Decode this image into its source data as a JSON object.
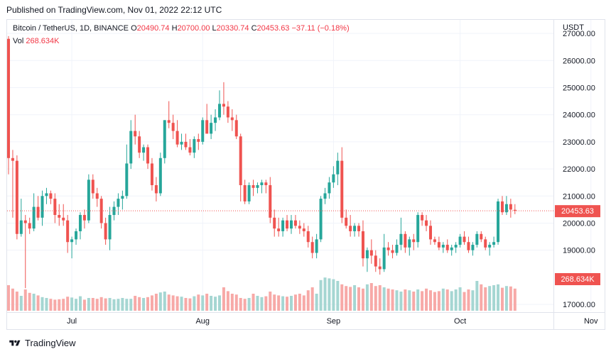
{
  "published": "Published on TradingView.com, Nov 01, 2022 22:12 UTC",
  "legend": {
    "symbol": "Bitcoin / TetherUS, 1D, BINANCE",
    "o_label": "O",
    "o": "20490.74",
    "h_label": "H",
    "h": "20700.00",
    "l_label": "L",
    "l": "20330.74",
    "c_label": "C",
    "c": "20453.63",
    "change": "−37.11 (−0.18%)"
  },
  "vol_legend": {
    "label": "Vol",
    "value": "268.634K"
  },
  "footer": {
    "brand": "TradingView"
  },
  "colors": {
    "up": "#26a69a",
    "down": "#ef5350",
    "up_vol": "#a5d6d2",
    "down_vol": "#f7a9a7",
    "grid": "#f0f3fa",
    "text": "#131722"
  },
  "chart_data": {
    "type": "candlestick",
    "currency": "USDT",
    "ylim": [
      16400,
      27500
    ],
    "y_ticks": [
      "27000.00",
      "26000.00",
      "25000.00",
      "24000.00",
      "23000.00",
      "22000.00",
      "21000.00",
      "20000.00",
      "19000.00",
      "17000.00"
    ],
    "x_ticks": [
      {
        "label": "Jul",
        "index": 15
      },
      {
        "label": "Aug",
        "index": 46
      },
      {
        "label": "Sep",
        "index": 77
      },
      {
        "label": "Oct",
        "index": 107
      },
      {
        "label": "Nov",
        "index": 138
      }
    ],
    "last_price": "20453.63",
    "last_volume": "268.634K",
    "candles": [
      [
        26800,
        26900,
        21800,
        22400
      ],
      [
        22400,
        22700,
        20200,
        22300
      ],
      [
        22300,
        22500,
        19400,
        19600
      ],
      [
        19600,
        20900,
        19500,
        20100
      ],
      [
        20100,
        20300,
        17600,
        20000
      ],
      [
        20000,
        20200,
        19600,
        19800
      ],
      [
        19800,
        21100,
        19700,
        20600
      ],
      [
        20600,
        21000,
        20100,
        20200
      ],
      [
        20200,
        21200,
        19900,
        21000
      ],
      [
        21000,
        21300,
        20700,
        21100
      ],
      [
        21100,
        21200,
        20700,
        20900
      ],
      [
        20900,
        21100,
        20000,
        20300
      ],
      [
        20300,
        20700,
        19900,
        20200
      ],
      [
        20200,
        20700,
        19900,
        20100
      ],
      [
        20100,
        20300,
        18900,
        19300
      ],
      [
        19300,
        19500,
        18700,
        19400
      ],
      [
        19400,
        19800,
        19200,
        19700
      ],
      [
        19700,
        20400,
        19400,
        20300
      ],
      [
        20300,
        20500,
        19800,
        20100
      ],
      [
        20100,
        21800,
        20000,
        21600
      ],
      [
        21600,
        21800,
        20900,
        21100
      ],
      [
        21100,
        21300,
        20600,
        20900
      ],
      [
        20900,
        21000,
        19800,
        20000
      ],
      [
        20000,
        20200,
        19200,
        19400
      ],
      [
        19400,
        20600,
        19000,
        20300
      ],
      [
        20300,
        20800,
        20100,
        20600
      ],
      [
        20600,
        21100,
        20300,
        20900
      ],
      [
        20900,
        21200,
        20500,
        21000
      ],
      [
        21000,
        22900,
        20900,
        22200
      ],
      [
        22200,
        23800,
        22000,
        23400
      ],
      [
        23400,
        24000,
        22900,
        23200
      ],
      [
        23200,
        23400,
        22400,
        22600
      ],
      [
        22600,
        22900,
        22300,
        22800
      ],
      [
        22800,
        22900,
        22000,
        22200
      ],
      [
        22200,
        22400,
        21200,
        21400
      ],
      [
        21400,
        21700,
        20800,
        21100
      ],
      [
        21100,
        22600,
        21000,
        22400
      ],
      [
        22400,
        23800,
        22200,
        23800
      ],
      [
        23800,
        24500,
        23500,
        23700
      ],
      [
        23700,
        24000,
        23100,
        23400
      ],
      [
        23400,
        23800,
        22800,
        22900
      ],
      [
        22900,
        23300,
        22700,
        23000
      ],
      [
        23000,
        23300,
        22700,
        22800
      ],
      [
        22800,
        23100,
        22500,
        22600
      ],
      [
        22600,
        23200,
        22400,
        23100
      ],
      [
        23100,
        23300,
        22700,
        23000
      ],
      [
        23000,
        23900,
        22900,
        23800
      ],
      [
        23800,
        24400,
        23300,
        23300
      ],
      [
        23300,
        24000,
        23100,
        23700
      ],
      [
        23700,
        24200,
        23400,
        23900
      ],
      [
        23900,
        24900,
        23800,
        24400
      ],
      [
        24400,
        25200,
        24000,
        24300
      ],
      [
        24300,
        24500,
        23700,
        23900
      ],
      [
        23900,
        24200,
        23400,
        23800
      ],
      [
        23800,
        24000,
        23100,
        23200
      ],
      [
        23200,
        23300,
        20800,
        21400
      ],
      [
        21400,
        21600,
        20700,
        20800
      ],
      [
        20800,
        21500,
        20700,
        21400
      ],
      [
        21400,
        21600,
        21000,
        21300
      ],
      [
        21300,
        21500,
        21100,
        21400
      ],
      [
        21400,
        21600,
        21100,
        21500
      ],
      [
        21500,
        21600,
        21100,
        21400
      ],
      [
        21400,
        21700,
        20000,
        20200
      ],
      [
        20200,
        20500,
        19500,
        19800
      ],
      [
        19800,
        20200,
        19500,
        19700
      ],
      [
        19700,
        20200,
        19500,
        20100
      ],
      [
        20100,
        20300,
        19700,
        19800
      ],
      [
        19800,
        20300,
        19600,
        20100
      ],
      [
        20100,
        20300,
        19800,
        19900
      ],
      [
        19900,
        20100,
        19600,
        19800
      ],
      [
        19800,
        20000,
        19500,
        19700
      ],
      [
        19700,
        19900,
        19100,
        19300
      ],
      [
        19300,
        19500,
        18700,
        18900
      ],
      [
        18900,
        19600,
        18700,
        19400
      ],
      [
        19400,
        21000,
        19300,
        20900
      ],
      [
        20900,
        21300,
        20700,
        21100
      ],
      [
        21100,
        21700,
        20900,
        21500
      ],
      [
        21500,
        22100,
        21300,
        21800
      ],
      [
        21800,
        22600,
        21400,
        22300
      ],
      [
        22300,
        22800,
        20000,
        20200
      ],
      [
        20200,
        20500,
        19800,
        19900
      ],
      [
        19900,
        20300,
        19500,
        19700
      ],
      [
        19700,
        20000,
        19500,
        19900
      ],
      [
        19900,
        20000,
        19500,
        19700
      ],
      [
        19700,
        20100,
        18400,
        18700
      ],
      [
        18700,
        19100,
        18200,
        19000
      ],
      [
        19000,
        19400,
        18500,
        18800
      ],
      [
        18800,
        19000,
        18200,
        18400
      ],
      [
        18400,
        18700,
        18100,
        18300
      ],
      [
        18300,
        19600,
        18200,
        19100
      ],
      [
        19100,
        19300,
        18800,
        19000
      ],
      [
        19000,
        19200,
        18700,
        18900
      ],
      [
        18900,
        19400,
        18800,
        19200
      ],
      [
        19200,
        20200,
        19000,
        19600
      ],
      [
        19600,
        19700,
        18900,
        19100
      ],
      [
        19100,
        19500,
        18800,
        19400
      ],
      [
        19400,
        19600,
        19000,
        19300
      ],
      [
        19300,
        20400,
        19100,
        20300
      ],
      [
        20300,
        20400,
        19900,
        20100
      ],
      [
        20100,
        20300,
        19700,
        19900
      ],
      [
        19900,
        20100,
        19200,
        19400
      ],
      [
        19400,
        19500,
        19200,
        19300
      ],
      [
        19300,
        19500,
        19000,
        19100
      ],
      [
        19100,
        19300,
        18900,
        19200
      ],
      [
        19200,
        19400,
        18900,
        19000
      ],
      [
        19000,
        19200,
        18800,
        19100
      ],
      [
        19100,
        19300,
        18900,
        19200
      ],
      [
        19200,
        19600,
        19100,
        19500
      ],
      [
        19500,
        19700,
        19200,
        19300
      ],
      [
        19300,
        19500,
        18900,
        19000
      ],
      [
        19000,
        19300,
        18800,
        19200
      ],
      [
        19200,
        19700,
        19100,
        19600
      ],
      [
        19600,
        19700,
        19300,
        19400
      ],
      [
        19400,
        19500,
        19000,
        19100
      ],
      [
        19100,
        19300,
        18800,
        19200
      ],
      [
        19200,
        19500,
        19100,
        19300
      ],
      [
        19300,
        20900,
        19200,
        20800
      ],
      [
        20800,
        21000,
        20300,
        20400
      ],
      [
        20400,
        21000,
        20300,
        20700
      ],
      [
        20700,
        20900,
        20200,
        20500
      ],
      [
        20490.74,
        20700,
        20330.74,
        20453.63
      ]
    ],
    "volumes": [
      60,
      52,
      45,
      35,
      50,
      42,
      40,
      36,
      32,
      30,
      28,
      26,
      27,
      28,
      33,
      31,
      28,
      34,
      26,
      30,
      30,
      28,
      32,
      29,
      30,
      27,
      28,
      30,
      28,
      28,
      35,
      32,
      30,
      32,
      36,
      40,
      43,
      45,
      38,
      36,
      34,
      33,
      30,
      29,
      34,
      38,
      36,
      40,
      35,
      33,
      36,
      55,
      46,
      40,
      38,
      30,
      28,
      30,
      40,
      35,
      32,
      34,
      45,
      38,
      36,
      34,
      33,
      35,
      38,
      40,
      36,
      48,
      55,
      40,
      72,
      78,
      76,
      74,
      70,
      62,
      58,
      56,
      60,
      55,
      52,
      62,
      65,
      58,
      60,
      55,
      52,
      50,
      48,
      45,
      50,
      48,
      45,
      50,
      46,
      52,
      48,
      44,
      46,
      52,
      50,
      46,
      50,
      55,
      44,
      50,
      48,
      70,
      62,
      55,
      58,
      60,
      62,
      54,
      58,
      57,
      52,
      49,
      55,
      50,
      46
    ],
    "vol_ylim": [
      0,
      250
    ]
  }
}
